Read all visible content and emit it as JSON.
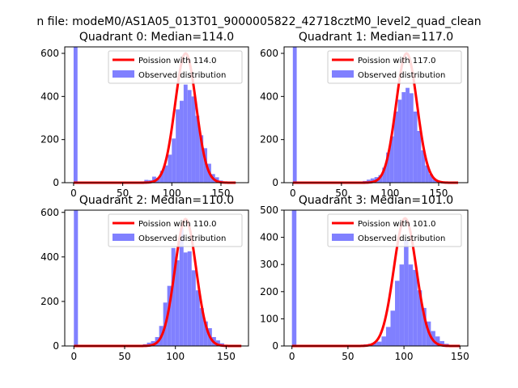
{
  "suptitle": "n file: modeM0/AS1A05_013T01_9000005822_42718cztM0_level2_quad_clean",
  "colors": {
    "curve": "#ff0000",
    "bars": "#8080ff",
    "axis": "#000000"
  },
  "chart_data": [
    {
      "type": "bar",
      "title": "Quadrant 0: Median=114.0",
      "xlim": [
        -9,
        178
      ],
      "ylim": [
        0,
        630
      ],
      "xticks": [
        0,
        50,
        100,
        150
      ],
      "yticks": [
        0,
        200,
        400,
        600
      ],
      "legend": [
        "Poission with 114.0",
        "Observed distribution"
      ],
      "legend_position": "top-right",
      "bin_width": 4,
      "hist": [
        [
          0,
          630
        ],
        [
          64,
          3
        ],
        [
          68,
          6
        ],
        [
          72,
          13
        ],
        [
          76,
          12
        ],
        [
          80,
          28
        ],
        [
          84,
          22
        ],
        [
          88,
          55
        ],
        [
          92,
          80
        ],
        [
          96,
          130
        ],
        [
          100,
          205
        ],
        [
          104,
          340
        ],
        [
          108,
          380
        ],
        [
          112,
          455
        ],
        [
          116,
          430
        ],
        [
          120,
          400
        ],
        [
          124,
          310
        ],
        [
          128,
          220
        ],
        [
          132,
          160
        ],
        [
          136,
          88
        ],
        [
          140,
          40
        ],
        [
          144,
          25
        ],
        [
          148,
          10
        ],
        [
          152,
          4
        ],
        [
          156,
          2
        ]
      ],
      "curve": {
        "x": [
          0,
          165
        ],
        "mean": 114.0,
        "peak": 600
      }
    },
    {
      "type": "bar",
      "title": "Quadrant 1: Median=117.0",
      "xlim": [
        -9,
        180
      ],
      "ylim": [
        0,
        630
      ],
      "xticks": [
        0,
        50,
        100,
        150
      ],
      "yticks": [
        0,
        200,
        400,
        600
      ],
      "legend": [
        "Poission with 117.0",
        "Observed distribution"
      ],
      "legend_position": "top-right",
      "bin_width": 4,
      "hist": [
        [
          0,
          630
        ],
        [
          68,
          3
        ],
        [
          72,
          8
        ],
        [
          76,
          14
        ],
        [
          80,
          20
        ],
        [
          84,
          26
        ],
        [
          88,
          35
        ],
        [
          92,
          70
        ],
        [
          96,
          140
        ],
        [
          100,
          215
        ],
        [
          104,
          330
        ],
        [
          108,
          385
        ],
        [
          112,
          420
        ],
        [
          116,
          440
        ],
        [
          120,
          415
        ],
        [
          124,
          330
        ],
        [
          128,
          240
        ],
        [
          132,
          150
        ],
        [
          136,
          80
        ],
        [
          140,
          40
        ],
        [
          144,
          15
        ],
        [
          148,
          5
        ],
        [
          152,
          2
        ]
      ],
      "curve": {
        "x": [
          0,
          170
        ],
        "mean": 117.0,
        "peak": 600
      }
    },
    {
      "type": "bar",
      "title": "Quadrant 2: Median=110.0",
      "xlim": [
        -9,
        172
      ],
      "ylim": [
        0,
        610
      ],
      "xticks": [
        0,
        50,
        100,
        150
      ],
      "yticks": [
        0,
        200,
        400,
        600
      ],
      "legend": [
        "Poission with 110.0",
        "Observed distribution"
      ],
      "legend_position": "top-right",
      "bin_width": 4,
      "hist": [
        [
          0,
          610
        ],
        [
          60,
          2
        ],
        [
          64,
          4
        ],
        [
          68,
          8
        ],
        [
          72,
          15
        ],
        [
          76,
          22
        ],
        [
          80,
          40
        ],
        [
          84,
          90
        ],
        [
          88,
          195
        ],
        [
          92,
          270
        ],
        [
          96,
          440
        ],
        [
          100,
          385
        ],
        [
          104,
          530
        ],
        [
          108,
          420
        ],
        [
          112,
          425
        ],
        [
          116,
          340
        ],
        [
          120,
          250
        ],
        [
          124,
          170
        ],
        [
          128,
          110
        ],
        [
          132,
          80
        ],
        [
          136,
          40
        ],
        [
          140,
          25
        ],
        [
          144,
          12
        ],
        [
          148,
          4
        ]
      ],
      "curve": {
        "x": [
          0,
          165
        ],
        "mean": 110.0,
        "peak": 570
      }
    },
    {
      "type": "bar",
      "title": "Quadrant 3: Median=101.0",
      "xlim": [
        -7,
        157
      ],
      "ylim": [
        0,
        500
      ],
      "xticks": [
        0,
        50,
        100,
        150
      ],
      "yticks": [
        0,
        100,
        200,
        300,
        400,
        500
      ],
      "legend": [
        "Poission with 101.0",
        "Observed distribution"
      ],
      "legend_position": "top-right",
      "bin_width": 4,
      "hist": [
        [
          0,
          500
        ],
        [
          56,
          2
        ],
        [
          60,
          4
        ],
        [
          64,
          6
        ],
        [
          68,
          8
        ],
        [
          72,
          12
        ],
        [
          76,
          16
        ],
        [
          80,
          35
        ],
        [
          84,
          70
        ],
        [
          88,
          130
        ],
        [
          92,
          240
        ],
        [
          96,
          300
        ],
        [
          100,
          390
        ],
        [
          104,
          300
        ],
        [
          108,
          280
        ],
        [
          112,
          205
        ],
        [
          116,
          140
        ],
        [
          120,
          90
        ],
        [
          124,
          55
        ],
        [
          128,
          35
        ],
        [
          132,
          18
        ],
        [
          136,
          8
        ],
        [
          140,
          4
        ]
      ],
      "curve": {
        "x": [
          0,
          150
        ],
        "mean": 101.0,
        "peak": 470
      }
    }
  ]
}
